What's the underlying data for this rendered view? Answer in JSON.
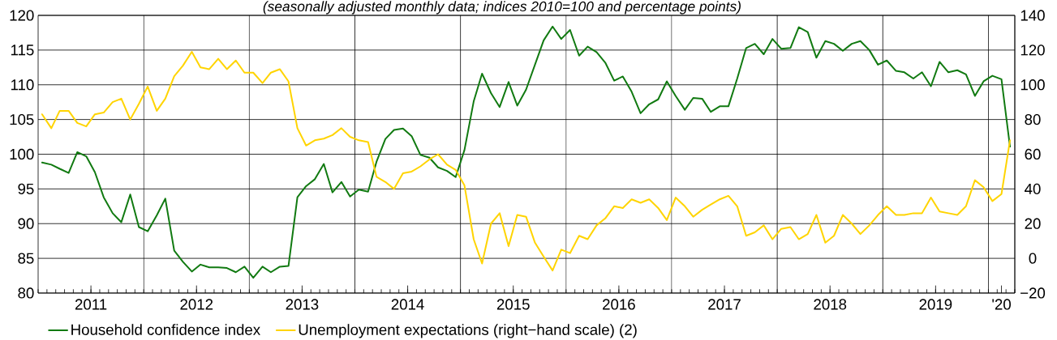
{
  "chart_data": {
    "type": "line",
    "subtitle": "(seasonally adjusted monthly data; indices 2010=100 and percentage points)",
    "x": [
      "2011-01-15",
      "2011-02-15",
      "2011-03-15",
      "2011-04-15",
      "2011-05-15",
      "2011-06-15",
      "2011-07-15",
      "2011-08-15",
      "2011-09-15",
      "2011-10-15",
      "2011-11-15",
      "2011-12-15",
      "2012-01-15",
      "2012-02-15",
      "2012-03-15",
      "2012-04-15",
      "2012-05-15",
      "2012-06-15",
      "2012-07-15",
      "2012-08-15",
      "2012-09-15",
      "2012-10-15",
      "2012-11-15",
      "2012-12-15",
      "2013-01-15",
      "2013-02-15",
      "2013-03-15",
      "2013-04-15",
      "2013-05-15",
      "2013-06-15",
      "2013-07-15",
      "2013-08-15",
      "2013-09-15",
      "2013-10-15",
      "2013-11-15",
      "2013-12-15",
      "2014-01-15",
      "2014-02-15",
      "2014-03-15",
      "2014-04-15",
      "2014-05-15",
      "2014-06-15",
      "2014-07-15",
      "2014-08-15",
      "2014-09-15",
      "2014-10-15",
      "2014-11-15",
      "2014-12-15",
      "2015-01-15",
      "2015-02-15",
      "2015-03-15",
      "2015-04-15",
      "2015-05-15",
      "2015-06-15",
      "2015-07-15",
      "2015-08-15",
      "2015-09-15",
      "2015-10-15",
      "2015-11-15",
      "2015-12-15",
      "2016-01-15",
      "2016-02-15",
      "2016-03-15",
      "2016-04-15",
      "2016-05-15",
      "2016-06-15",
      "2016-07-15",
      "2016-08-15",
      "2016-09-15",
      "2016-10-15",
      "2016-11-15",
      "2016-12-15",
      "2017-01-15",
      "2017-02-15",
      "2017-03-15",
      "2017-04-15",
      "2017-05-15",
      "2017-06-15",
      "2017-07-15",
      "2017-08-15",
      "2017-09-15",
      "2017-10-15",
      "2017-11-15",
      "2017-12-15",
      "2018-01-15",
      "2018-02-15",
      "2018-03-15",
      "2018-04-15",
      "2018-05-15",
      "2018-06-15",
      "2018-07-15",
      "2018-08-15",
      "2018-09-15",
      "2018-10-15",
      "2018-11-15",
      "2018-12-15",
      "2019-01-15",
      "2019-02-15",
      "2019-03-15",
      "2019-04-15",
      "2019-05-15",
      "2019-06-15",
      "2019-07-15",
      "2019-08-15",
      "2019-09-15",
      "2019-10-15",
      "2019-11-15",
      "2019-12-15",
      "2020-01-15",
      "2020-02-15",
      "2020-03-15"
    ],
    "xlim": [
      "2011-01-01",
      "2020-04-01"
    ],
    "xticks": [
      {
        "value": "2011-07-01",
        "label": "2011"
      },
      {
        "value": "2012-07-01",
        "label": "2012"
      },
      {
        "value": "2013-07-01",
        "label": "2013"
      },
      {
        "value": "2014-07-01",
        "label": "2014"
      },
      {
        "value": "2015-07-01",
        "label": "2015"
      },
      {
        "value": "2016-07-01",
        "label": "2016"
      },
      {
        "value": "2017-07-01",
        "label": "2017"
      },
      {
        "value": "2018-07-01",
        "label": "2018"
      },
      {
        "value": "2019-07-01",
        "label": "2019"
      },
      {
        "value": "2020-02-15",
        "label": "'20"
      }
    ],
    "ylim": [
      80,
      120
    ],
    "yticks": [
      80,
      85,
      90,
      95,
      100,
      105,
      110,
      115,
      120
    ],
    "y2lim": [
      -20,
      140
    ],
    "y2ticks": [
      {
        "value": -20,
        "label": "−20"
      },
      0,
      20,
      40,
      60,
      80,
      100,
      120,
      140
    ],
    "grid": "y",
    "legend": "bottom",
    "ref_lines": [
      {
        "axis": "x",
        "value": "2012-01-01"
      },
      {
        "axis": "x",
        "value": "2013-01-01"
      },
      {
        "axis": "x",
        "value": "2014-01-01"
      },
      {
        "axis": "x",
        "value": "2015-01-01"
      },
      {
        "axis": "x",
        "value": "2016-01-01"
      },
      {
        "axis": "x",
        "value": "2017-01-01"
      },
      {
        "axis": "x",
        "value": "2018-01-01"
      },
      {
        "axis": "x",
        "value": "2019-01-01"
      },
      {
        "axis": "x",
        "value": "2020-01-01"
      }
    ],
    "series": [
      {
        "name": "Household confidence index",
        "color": "#117a11",
        "values": [
          98.8,
          98.5,
          97.9,
          97.3,
          100.3,
          99.7,
          97.4,
          93.8,
          91.5,
          90.2,
          94.2,
          89.5,
          88.9,
          91.2,
          93.6,
          86.1,
          84.5,
          83.1,
          84.1,
          83.7,
          83.7,
          83.6,
          83.0,
          83.8,
          82.2,
          83.8,
          83.0,
          83.8,
          83.9,
          93.8,
          95.4,
          96.4,
          98.6,
          94.5,
          96.0,
          93.9,
          94.9,
          94.6,
          98.9,
          102.2,
          103.5,
          103.7,
          102.6,
          99.9,
          99.5,
          98.1,
          97.6,
          96.7,
          100.6,
          107.6,
          111.6,
          108.8,
          106.8,
          110.4,
          107.0,
          109.3,
          112.9,
          116.4,
          118.4,
          116.6,
          117.9,
          114.2,
          115.5,
          114.7,
          113.2,
          110.6,
          111.2,
          109.0,
          105.9,
          107.2,
          107.9,
          110.5,
          108.4,
          106.4,
          108.1,
          108.0,
          106.1,
          106.9,
          106.9,
          110.9,
          115.3,
          115.9,
          114.4,
          116.6,
          115.2,
          115.3,
          118.3,
          117.6,
          113.9,
          116.3,
          115.9,
          114.9,
          115.9,
          116.3,
          115.0,
          112.9,
          113.5,
          112.0,
          111.8,
          110.9,
          111.8,
          109.8,
          113.3,
          111.8,
          112.1,
          111.5,
          108.4,
          110.5,
          111.3,
          110.8,
          101.1
        ]
      },
      {
        "name": "Unemployment expectations (right−hand scale) (2)",
        "color": "#ffd400",
        "axis": "y2",
        "values": [
          83,
          75,
          85,
          85,
          78,
          76,
          83,
          84,
          90,
          92,
          80,
          89,
          99,
          85,
          92,
          105,
          111,
          119,
          110,
          109,
          115,
          109,
          114,
          107,
          107,
          101,
          107,
          109,
          102,
          75,
          65,
          68,
          69,
          71,
          75,
          70,
          68,
          67,
          47,
          44,
          40,
          49,
          50,
          53,
          57,
          60,
          54,
          51,
          42,
          11,
          -3,
          20,
          26,
          7,
          25,
          24,
          9,
          1,
          -7,
          5,
          3,
          13,
          11,
          19,
          23,
          30,
          29,
          34,
          32,
          34,
          29,
          22,
          35,
          30,
          24,
          28,
          31,
          34,
          36,
          30,
          13,
          15,
          19,
          11,
          17,
          18,
          11,
          14,
          25,
          9,
          13,
          25,
          20,
          14,
          19,
          25,
          30,
          25,
          25,
          26,
          26,
          35,
          27,
          26,
          25,
          30,
          45,
          41,
          33,
          37,
          68
        ]
      }
    ]
  }
}
